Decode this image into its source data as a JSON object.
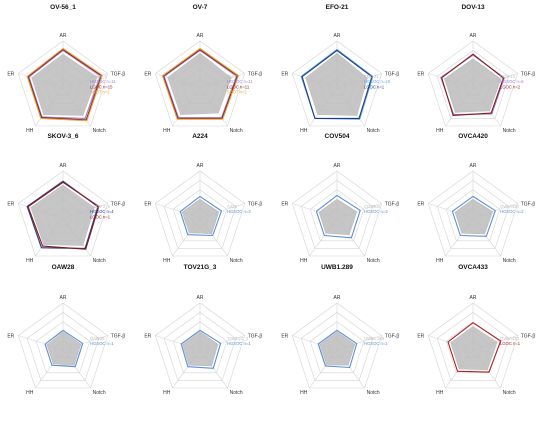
{
  "chart_data": [
    {
      "type": "radar",
      "title": "OV-56_1",
      "axes": [
        "AR",
        "TGF-β",
        "Notch",
        "HH",
        "ER"
      ],
      "series": [
        {
          "name": "OV-56_1",
          "color": "#bdbdbd",
          "values": [
            0.72,
            0.76,
            0.72,
            0.7,
            0.7
          ]
        },
        {
          "name": "HGSOC n=11",
          "color": "#9b7fd0",
          "values": [
            0.8,
            0.84,
            0.8,
            0.76,
            0.76
          ]
        },
        {
          "name": "LGOC n=15",
          "color": "#8b1a1a",
          "values": [
            0.82,
            0.86,
            0.84,
            0.78,
            0.78
          ]
        },
        {
          "name": "SBOT n=2",
          "color": "#e8a33c",
          "values": [
            0.84,
            0.88,
            0.86,
            0.8,
            0.8
          ]
        }
      ]
    },
    {
      "type": "radar",
      "title": "OV-7",
      "axes": [
        "AR",
        "TGF-β",
        "Notch",
        "HH",
        "ER"
      ],
      "series": [
        {
          "name": "OV-7",
          "color": "#bdbdbd",
          "values": [
            0.74,
            0.7,
            0.66,
            0.7,
            0.72
          ]
        },
        {
          "name": "HGSOC n=11",
          "color": "#9b7fd0",
          "values": [
            0.8,
            0.82,
            0.78,
            0.78,
            0.8
          ]
        },
        {
          "name": "LGOC n=11",
          "color": "#8b1a1a",
          "values": [
            0.82,
            0.84,
            0.8,
            0.8,
            0.82
          ]
        },
        {
          "name": "SBOT n=2",
          "color": "#e8a33c",
          "values": [
            0.84,
            0.86,
            0.82,
            0.82,
            0.84
          ]
        }
      ]
    },
    {
      "type": "radar",
      "title": "EFO-21",
      "axes": [
        "AR",
        "TGF-β",
        "Notch",
        "HH",
        "ER"
      ],
      "series": [
        {
          "name": "EFO-21",
          "color": "#bdbdbd",
          "values": [
            0.74,
            0.68,
            0.72,
            0.7,
            0.7
          ]
        },
        {
          "name": "HGSOC n=19",
          "color": "#5da9d6",
          "values": [
            0.82,
            0.8,
            0.82,
            0.8,
            0.8
          ]
        },
        {
          "name": "LGOC n=1",
          "color": "#1f3a8a",
          "values": [
            0.8,
            0.78,
            0.8,
            0.8,
            0.78
          ]
        }
      ]
    },
    {
      "type": "radar",
      "title": "DOV-13",
      "axes": [
        "AR",
        "TGF-β",
        "Notch",
        "HH",
        "ER"
      ],
      "series": [
        {
          "name": "DOV-13",
          "color": "#bdbdbd",
          "values": [
            0.62,
            0.62,
            0.6,
            0.64,
            0.64
          ]
        },
        {
          "name": "HGSOC n=6",
          "color": "#9b7fd0",
          "values": [
            0.7,
            0.7,
            0.68,
            0.7,
            0.72
          ]
        },
        {
          "name": "LGOC n=2",
          "color": "#8b1a1a",
          "values": [
            0.72,
            0.68,
            0.66,
            0.72,
            0.7
          ]
        }
      ]
    },
    {
      "type": "radar",
      "title": "SKOV-3_6",
      "axes": [
        "AR",
        "TGF-β",
        "Notch",
        "HH",
        "ER"
      ],
      "series": [
        {
          "name": "SKOV-3_6",
          "color": "#bdbdbd",
          "values": [
            0.7,
            0.7,
            0.72,
            0.7,
            0.72
          ]
        },
        {
          "name": "HGSOC n=4",
          "color": "#1f3a8a",
          "values": [
            0.78,
            0.78,
            0.8,
            0.78,
            0.8
          ]
        },
        {
          "name": "LGOC n=1",
          "color": "#8b1a1a",
          "values": [
            0.76,
            0.8,
            0.82,
            0.74,
            0.78
          ]
        }
      ]
    },
    {
      "type": "radar",
      "title": "A224",
      "axes": [
        "AR",
        "TGF-β",
        "Notch",
        "HH",
        "ER"
      ],
      "series": [
        {
          "name": "A224",
          "color": "#bdbdbd",
          "values": [
            0.4,
            0.42,
            0.42,
            0.38,
            0.4
          ]
        },
        {
          "name": "HGSOC n=3",
          "color": "#5d8fd6",
          "values": [
            0.46,
            0.48,
            0.46,
            0.44,
            0.44
          ]
        }
      ]
    },
    {
      "type": "radar",
      "title": "COV504",
      "axes": [
        "AR",
        "TGF-β",
        "Notch",
        "HH",
        "ER"
      ],
      "series": [
        {
          "name": "COV504",
          "color": "#bdbdbd",
          "values": [
            0.4,
            0.44,
            0.44,
            0.4,
            0.4
          ]
        },
        {
          "name": "HGSOC n=3",
          "color": "#5d8fd6",
          "values": [
            0.48,
            0.52,
            0.52,
            0.46,
            0.46
          ]
        }
      ]
    },
    {
      "type": "radar",
      "title": "OVCA420",
      "axes": [
        "AR",
        "TGF-β",
        "Notch",
        "HH",
        "ER"
      ],
      "series": [
        {
          "name": "OVCA420",
          "color": "#bdbdbd",
          "values": [
            0.4,
            0.44,
            0.42,
            0.4,
            0.4
          ]
        },
        {
          "name": "HGSOC n=2",
          "color": "#5d8fd6",
          "values": [
            0.46,
            0.5,
            0.48,
            0.46,
            0.46
          ]
        }
      ]
    },
    {
      "type": "radar",
      "title": "OAW28",
      "axes": [
        "AR",
        "TGF-β",
        "Notch",
        "HH",
        "ER"
      ],
      "series": [
        {
          "name": "OAW28",
          "color": "#bdbdbd",
          "values": [
            0.38,
            0.4,
            0.4,
            0.36,
            0.36
          ]
        },
        {
          "name": "HGSOC n=1",
          "color": "#5d8fd6",
          "values": [
            0.42,
            0.44,
            0.44,
            0.4,
            0.4
          ]
        }
      ]
    },
    {
      "type": "radar",
      "title": "TOV21G_3",
      "axes": [
        "AR",
        "TGF-β",
        "Notch",
        "HH",
        "ER"
      ],
      "series": [
        {
          "name": "TOV21G_3",
          "color": "#bdbdbd",
          "values": [
            0.38,
            0.4,
            0.42,
            0.4,
            0.38
          ]
        },
        {
          "name": "HGSOC n=1",
          "color": "#5d8fd6",
          "values": [
            0.42,
            0.46,
            0.48,
            0.44,
            0.42
          ]
        }
      ]
    },
    {
      "type": "radar",
      "title": "UWB1.289",
      "axes": [
        "AR",
        "TGF-β",
        "Notch",
        "HH",
        "ER"
      ],
      "series": [
        {
          "name": "UWB1.289",
          "color": "#bdbdbd",
          "values": [
            0.38,
            0.4,
            0.4,
            0.38,
            0.38
          ]
        },
        {
          "name": "HGSOC n=1",
          "color": "#5d8fd6",
          "values": [
            0.42,
            0.44,
            0.46,
            0.42,
            0.42
          ]
        }
      ]
    },
    {
      "type": "radar",
      "title": "OVCA433",
      "axes": [
        "AR",
        "TGF-β",
        "Notch",
        "HH",
        "ER"
      ],
      "series": [
        {
          "name": "OVCA433",
          "color": "#bdbdbd",
          "values": [
            0.5,
            0.54,
            0.52,
            0.5,
            0.5
          ]
        },
        {
          "name": "LGOC n=1",
          "color": "#b22222",
          "values": [
            0.58,
            0.62,
            0.58,
            0.56,
            0.56
          ]
        }
      ]
    }
  ]
}
